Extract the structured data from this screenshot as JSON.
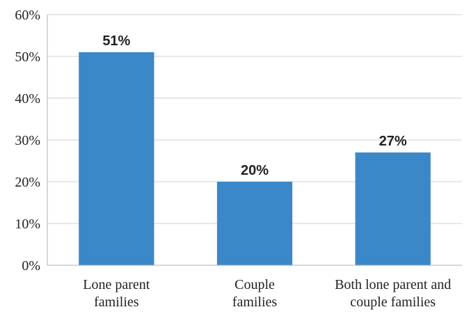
{
  "chart_data": {
    "type": "bar",
    "categories": [
      [
        "Lone parent",
        "families"
      ],
      [
        "Couple",
        "families"
      ],
      [
        "Both lone parent and",
        "couple families"
      ]
    ],
    "values": [
      51,
      20,
      27
    ],
    "data_labels": [
      "51%",
      "20%",
      "27%"
    ],
    "ylim": [
      0,
      60
    ],
    "yticks": [
      0,
      10,
      20,
      30,
      40,
      50,
      60
    ],
    "ytick_labels": [
      "0%",
      "10%",
      "20%",
      "30%",
      "40%",
      "50%",
      "60%"
    ],
    "grid": true,
    "bar_color": "#3b88c8",
    "title": "",
    "xlabel": "",
    "ylabel": ""
  }
}
